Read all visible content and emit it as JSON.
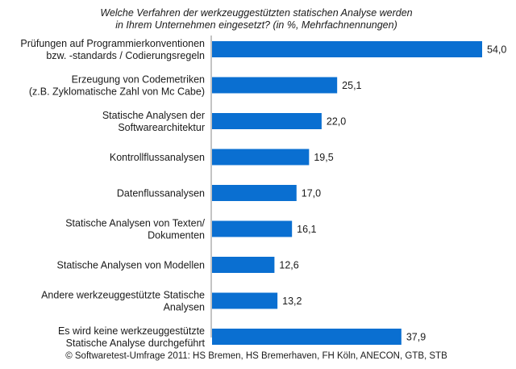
{
  "chart_data": {
    "type": "bar",
    "orientation": "horizontal",
    "title_lines": [
      "Welche Verfahren der werkzeuggestützten statischen Analyse werden",
      "in Ihrem Unternehmen eingesetzt? (in %, Mehrfachnennungen)"
    ],
    "categories": [
      [
        "Prüfungen auf Programmierkonventionen",
        "bzw. -standards / Codierungsregeln"
      ],
      [
        "Erzeugung von Codemetriken",
        "(z.B. Zyklomatische Zahl von Mc Cabe)"
      ],
      [
        "Statische Analysen der",
        "Softwarearchitektur"
      ],
      [
        "Kontrollflussanalysen"
      ],
      [
        "Datenflussanalysen"
      ],
      [
        "Statische Analysen von Texten/",
        "Dokumenten"
      ],
      [
        "Statische Analysen von Modellen"
      ],
      [
        "Andere werkzeuggestützte Statische",
        "Analysen"
      ],
      [
        "Es wird keine werkzeuggestützte",
        "Statische Analyse durchgeführt"
      ]
    ],
    "values": [
      54.0,
      25.1,
      22.0,
      19.5,
      17.0,
      16.1,
      12.6,
      13.2,
      37.9
    ],
    "value_labels": [
      "54,0",
      "25,1",
      "22,0",
      "19,5",
      "17,0",
      "16,1",
      "12,6",
      "13,2",
      "37,9"
    ],
    "xlim": [
      0,
      54
    ],
    "grid": false,
    "legend": "none",
    "bar_color": "#0a6fd1",
    "source": "© Softwaretest-Umfrage 2011: HS Bremen, HS Bremerhaven, FH Köln, ANECON, GTB, STB"
  }
}
